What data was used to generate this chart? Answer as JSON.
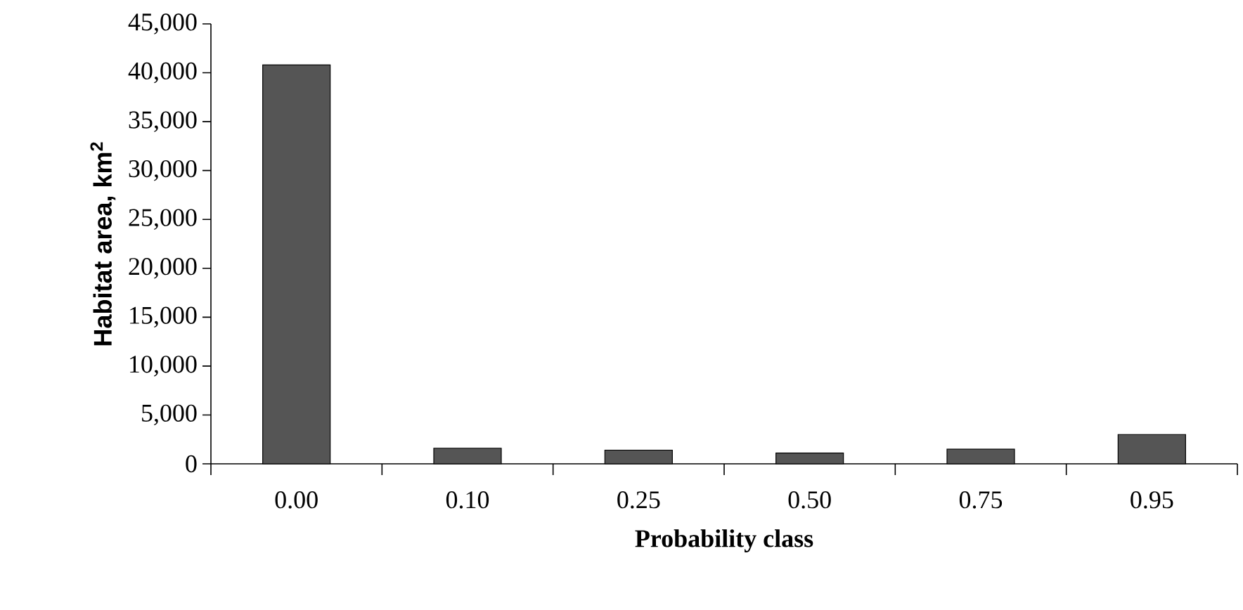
{
  "chart_data": {
    "type": "bar",
    "xlabel": "Probability class",
    "ylabel": "Habitat area, km$^{2}$",
    "categories": [
      "0.00",
      "0.10",
      "0.25",
      "0.50",
      "0.75",
      "0.95"
    ],
    "values": [
      40800,
      1600,
      1400,
      1100,
      1500,
      3000
    ],
    "color": "#555555",
    "ylim": [
      0,
      45000
    ],
    "yticks": [
      {
        "value": 0,
        "label": "0"
      },
      {
        "value": 5000,
        "label": "5,000"
      },
      {
        "value": 10000,
        "label": "10,000"
      },
      {
        "value": 15000,
        "label": "15,000"
      },
      {
        "value": 20000,
        "label": "20,000"
      },
      {
        "value": 25000,
        "label": "25,000"
      },
      {
        "value": 30000,
        "label": "30,000"
      },
      {
        "value": 35000,
        "label": "35,000"
      },
      {
        "value": 40000,
        "label": "40,000"
      },
      {
        "value": 45000,
        "label": "45,000"
      }
    ]
  }
}
